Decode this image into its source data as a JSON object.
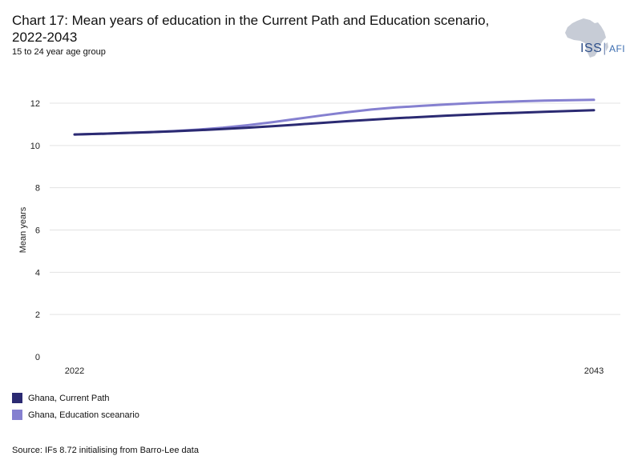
{
  "title": "Chart 17: Mean years of education in the Current Path and Education scenario, 2022-2043",
  "subtitle": "15 to 24 year age group",
  "logo": {
    "main": "ISS",
    "sub": "AFI",
    "icon": "africa-map-icon"
  },
  "source": "Source: IFs 8.72 initialising from Barro-Lee data",
  "colors": {
    "current_path": "#2b2a72",
    "education": "#8580d0",
    "grid": "#e3e3e3"
  },
  "chart_data": {
    "type": "line",
    "ylabel": "Mean years",
    "ylim": [
      0,
      12
    ],
    "yticks": [
      0,
      2,
      4,
      6,
      8,
      10,
      12
    ],
    "xlim": [
      2022,
      2043
    ],
    "xticks": [
      2022,
      2043
    ],
    "grid": true,
    "legend_position": "bottom-left",
    "x": [
      2022,
      2023,
      2024,
      2025,
      2026,
      2027,
      2028,
      2029,
      2030,
      2031,
      2032,
      2033,
      2034,
      2035,
      2036,
      2037,
      2038,
      2039,
      2040,
      2041,
      2042,
      2043
    ],
    "series": [
      {
        "name": "Ghana, Current Path",
        "color": "#2b2a72",
        "values": [
          10.52,
          10.55,
          10.59,
          10.63,
          10.67,
          10.72,
          10.78,
          10.84,
          10.91,
          10.99,
          11.07,
          11.15,
          11.22,
          11.29,
          11.35,
          11.41,
          11.46,
          11.51,
          11.55,
          11.59,
          11.63,
          11.67
        ]
      },
      {
        "name": "Ghana, Education sceanario",
        "color": "#8580d0",
        "values": [
          10.52,
          10.55,
          10.59,
          10.63,
          10.68,
          10.75,
          10.84,
          10.96,
          11.1,
          11.26,
          11.42,
          11.57,
          11.7,
          11.8,
          11.87,
          11.94,
          12.0,
          12.05,
          12.09,
          12.12,
          12.14,
          12.16
        ]
      }
    ]
  }
}
